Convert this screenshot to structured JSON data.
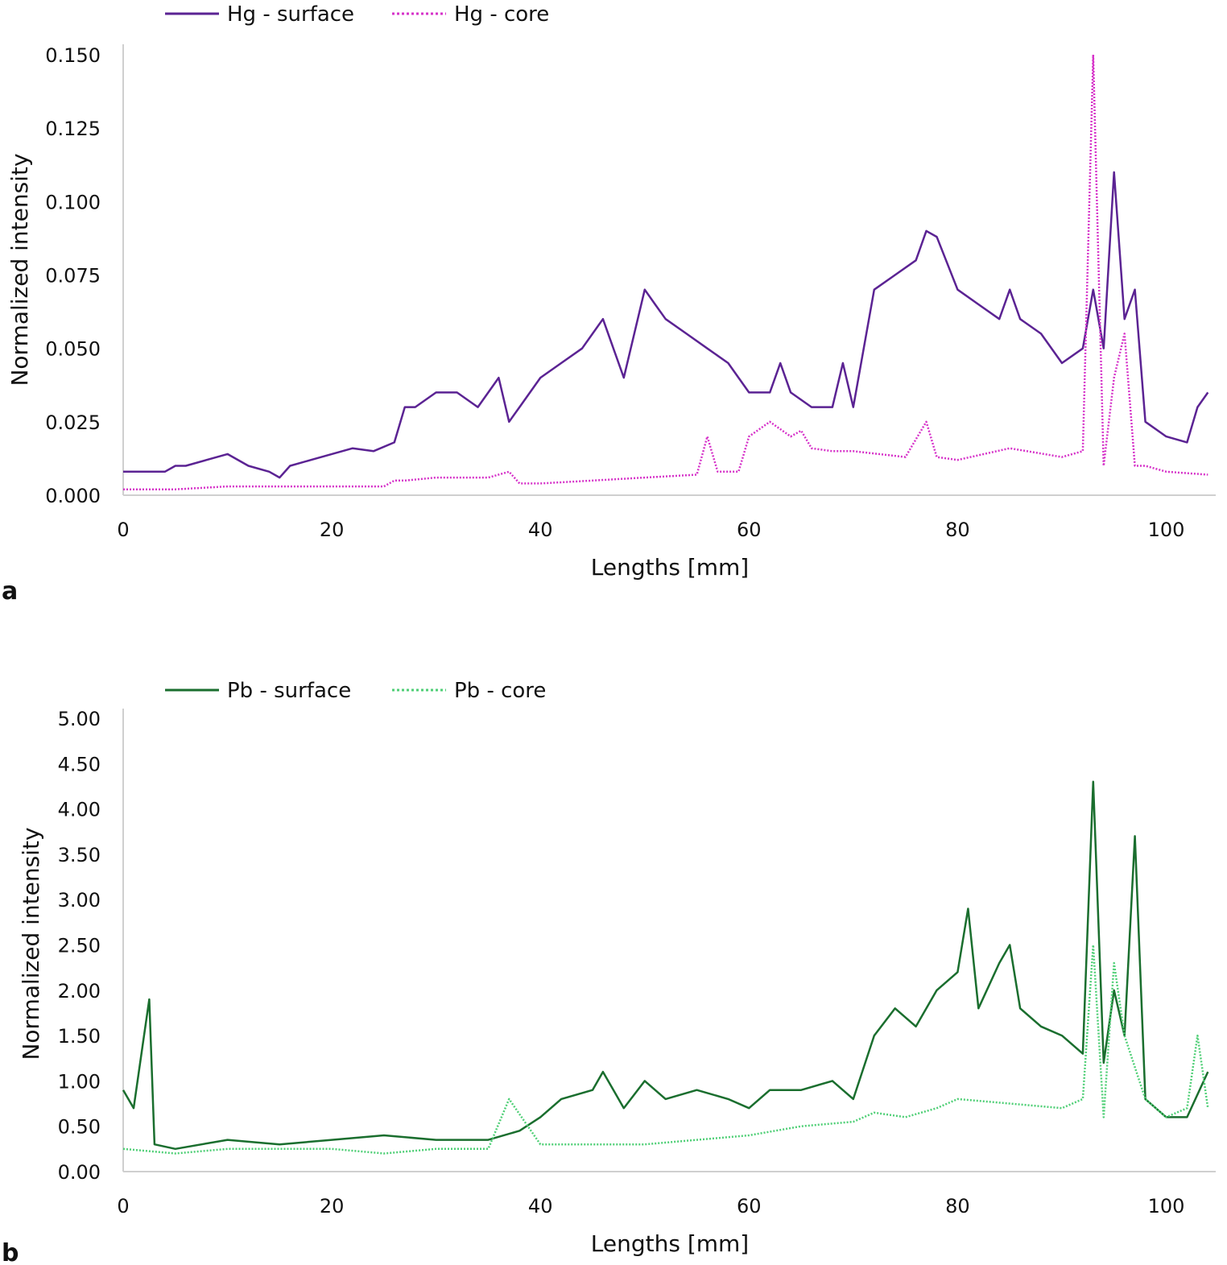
{
  "chart_data": [
    {
      "panel_label": "a",
      "type": "line",
      "xlabel": "Lengths [mm]",
      "ylabel": "Normalized intensity",
      "xlim": [
        0,
        105
      ],
      "ylim": [
        0,
        0.15
      ],
      "xticks": [
        0,
        20,
        40,
        60,
        80,
        100
      ],
      "xtick_labels": [
        "0",
        "20",
        "40",
        "60",
        "80",
        "100"
      ],
      "yticks": [
        0,
        0.025,
        0.05,
        0.075,
        0.1,
        0.125,
        0.15
      ],
      "ytick_labels": [
        "0.000",
        "0.025",
        "0.050",
        "0.075",
        "0.100",
        "0.125",
        "0.150"
      ],
      "grid": false,
      "legend_position": "top",
      "series": [
        {
          "name": "Hg - surface",
          "color": "#5b2393",
          "style": "solid",
          "x": [
            0,
            2,
            4,
            5,
            6,
            8,
            10,
            12,
            14,
            15,
            16,
            18,
            20,
            22,
            24,
            26,
            27,
            28,
            30,
            32,
            34,
            36,
            37,
            38,
            40,
            42,
            44,
            45,
            46,
            48,
            50,
            51,
            52,
            54,
            56,
            58,
            60,
            62,
            63,
            64,
            66,
            68,
            69,
            70,
            72,
            74,
            76,
            77,
            78,
            80,
            82,
            84,
            85,
            86,
            88,
            90,
            92,
            93,
            94,
            95,
            96,
            97,
            98,
            100,
            102,
            103,
            104
          ],
          "values": [
            0.008,
            0.008,
            0.008,
            0.01,
            0.01,
            0.012,
            0.014,
            0.01,
            0.008,
            0.006,
            0.01,
            0.012,
            0.014,
            0.016,
            0.015,
            0.018,
            0.03,
            0.03,
            0.035,
            0.035,
            0.03,
            0.04,
            0.025,
            0.03,
            0.04,
            0.045,
            0.05,
            0.055,
            0.06,
            0.04,
            0.07,
            0.065,
            0.06,
            0.055,
            0.05,
            0.045,
            0.035,
            0.035,
            0.045,
            0.035,
            0.03,
            0.03,
            0.045,
            0.03,
            0.07,
            0.075,
            0.08,
            0.09,
            0.088,
            0.07,
            0.065,
            0.06,
            0.07,
            0.06,
            0.055,
            0.045,
            0.05,
            0.07,
            0.05,
            0.11,
            0.06,
            0.07,
            0.025,
            0.02,
            0.018,
            0.03,
            0.035
          ]
        },
        {
          "name": "Hg - core",
          "color": "#d633c9",
          "style": "dotted",
          "x": [
            0,
            5,
            10,
            15,
            20,
            25,
            26,
            27,
            30,
            35,
            37,
            38,
            40,
            45,
            50,
            55,
            56,
            57,
            59,
            60,
            62,
            64,
            65,
            66,
            68,
            70,
            75,
            77,
            78,
            80,
            85,
            90,
            92,
            93,
            94,
            95,
            96,
            97,
            98,
            100,
            104
          ],
          "values": [
            0.002,
            0.002,
            0.003,
            0.003,
            0.003,
            0.003,
            0.005,
            0.005,
            0.006,
            0.006,
            0.008,
            0.004,
            0.004,
            0.005,
            0.006,
            0.007,
            0.02,
            0.008,
            0.008,
            0.02,
            0.025,
            0.02,
            0.022,
            0.016,
            0.015,
            0.015,
            0.013,
            0.025,
            0.013,
            0.012,
            0.016,
            0.013,
            0.015,
            0.15,
            0.01,
            0.04,
            0.055,
            0.01,
            0.01,
            0.008,
            0.007
          ]
        }
      ]
    },
    {
      "panel_label": "b",
      "type": "line",
      "xlabel": "Lengths [mm]",
      "ylabel": "Normalized intensity",
      "xlim": [
        0,
        105
      ],
      "ylim": [
        0,
        5
      ],
      "xticks": [
        0,
        20,
        40,
        60,
        80,
        100
      ],
      "xtick_labels": [
        "0",
        "20",
        "40",
        "60",
        "80",
        "100"
      ],
      "yticks": [
        0,
        0.5,
        1,
        1.5,
        2,
        2.5,
        3,
        3.5,
        4,
        4.5,
        5
      ],
      "ytick_labels": [
        "0.00",
        "0.50",
        "1.00",
        "1.50",
        "2.00",
        "2.50",
        "3.00",
        "3.50",
        "4.00",
        "4.50",
        "5.00"
      ],
      "grid": false,
      "legend_position": "top",
      "series": [
        {
          "name": "Pb - surface",
          "color": "#1a6e2e",
          "style": "solid",
          "x": [
            0,
            1,
            2,
            2.5,
            3,
            5,
            10,
            15,
            20,
            25,
            30,
            35,
            38,
            40,
            42,
            45,
            46,
            48,
            50,
            52,
            55,
            58,
            60,
            62,
            65,
            68,
            70,
            72,
            74,
            76,
            78,
            80,
            81,
            82,
            84,
            85,
            86,
            88,
            90,
            92,
            93,
            94,
            95,
            96,
            97,
            98,
            100,
            102,
            104
          ],
          "values": [
            0.9,
            0.7,
            1.5,
            1.9,
            0.3,
            0.25,
            0.35,
            0.3,
            0.35,
            0.4,
            0.35,
            0.35,
            0.45,
            0.6,
            0.8,
            0.9,
            1.1,
            0.7,
            1.0,
            0.8,
            0.9,
            0.8,
            0.7,
            0.9,
            0.9,
            1.0,
            0.8,
            1.5,
            1.8,
            1.6,
            2.0,
            2.2,
            2.9,
            1.8,
            2.3,
            2.5,
            1.8,
            1.6,
            1.5,
            1.3,
            4.3,
            1.2,
            2.0,
            1.5,
            3.7,
            0.8,
            0.6,
            0.6,
            1.1
          ]
        },
        {
          "name": "Pb - core",
          "color": "#4fcf76",
          "style": "dotted",
          "x": [
            0,
            5,
            10,
            15,
            20,
            25,
            30,
            35,
            37,
            40,
            45,
            50,
            55,
            60,
            65,
            70,
            72,
            75,
            78,
            80,
            85,
            90,
            92,
            93,
            94,
            95,
            96,
            98,
            100,
            102,
            103,
            104
          ],
          "values": [
            0.25,
            0.2,
            0.25,
            0.25,
            0.25,
            0.2,
            0.25,
            0.25,
            0.8,
            0.3,
            0.3,
            0.3,
            0.35,
            0.4,
            0.5,
            0.55,
            0.65,
            0.6,
            0.7,
            0.8,
            0.75,
            0.7,
            0.8,
            2.5,
            0.6,
            2.3,
            1.5,
            0.8,
            0.6,
            0.7,
            1.5,
            0.7
          ]
        }
      ]
    }
  ]
}
